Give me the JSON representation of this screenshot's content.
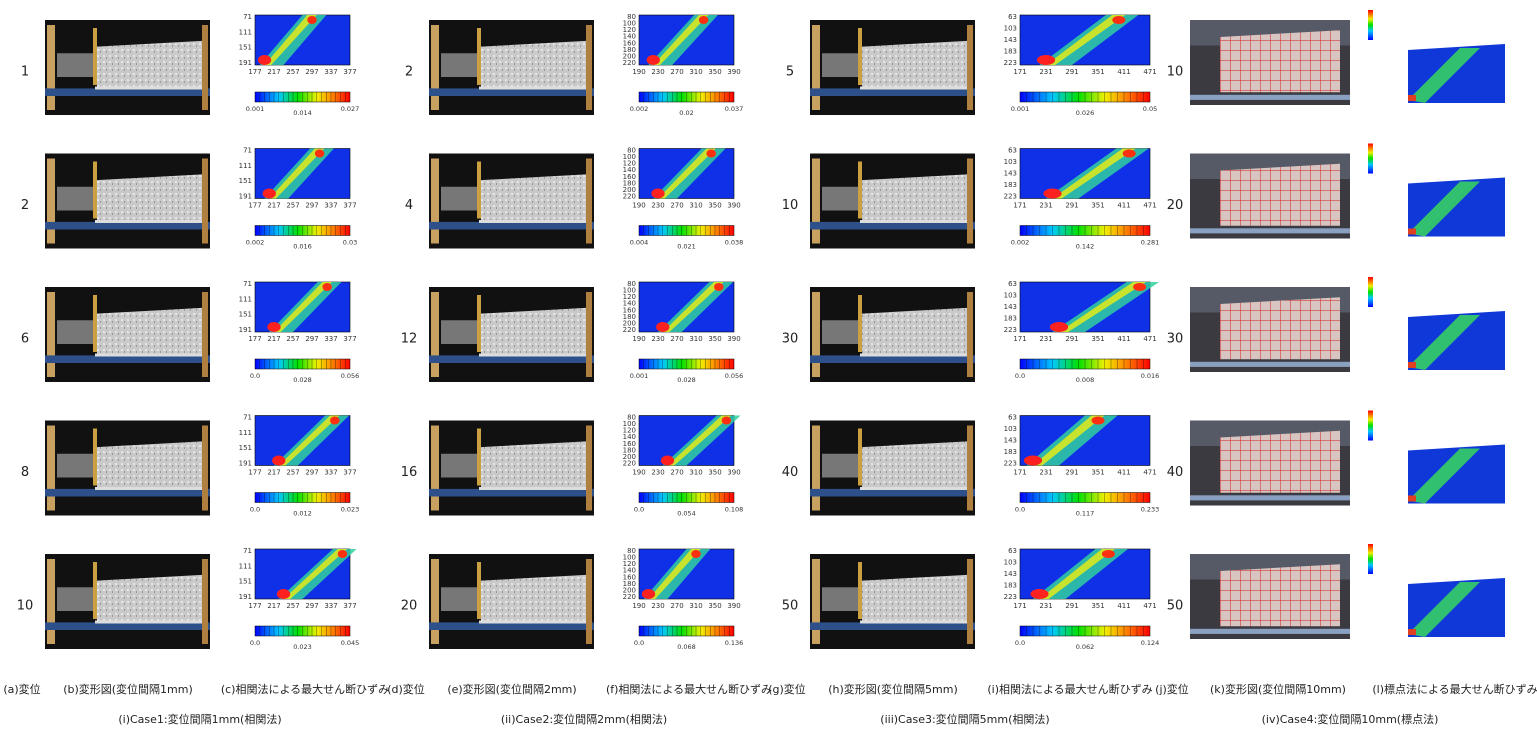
{
  "cases": [
    {
      "caption": "(i)Case1:変位間隔1mm(相関法)",
      "headers": [
        "(a)変位",
        "(b)変形図(変位間隔1mm)",
        "(c)相関法による最大せん断ひずみ"
      ],
      "xticks": [
        177,
        217,
        257,
        297,
        337,
        377
      ],
      "yticks": [
        71,
        111,
        151,
        191
      ],
      "rows": [
        {
          "displacement": 1,
          "colorbar": [
            "0.001",
            "0.014",
            "0.027"
          ]
        },
        {
          "displacement": 2,
          "colorbar": [
            "0.002",
            "0.016",
            "0.03"
          ]
        },
        {
          "displacement": 6,
          "colorbar": [
            "0.0",
            "0.028",
            "0.056"
          ]
        },
        {
          "displacement": 8,
          "colorbar": [
            "0.0",
            "0.012",
            "0.023"
          ]
        },
        {
          "displacement": 10,
          "colorbar": [
            "0.0",
            "0.023",
            "0.045"
          ]
        }
      ]
    },
    {
      "caption": "(ii)Case2:変位間隔2mm(相関法)",
      "headers": [
        "(d)変位",
        "(e)変形図(変位間隔2mm)",
        "(f)相関法による最大せん断ひずみ"
      ],
      "xticks": [
        190,
        230,
        270,
        310,
        350,
        390
      ],
      "yticks": [
        80,
        100,
        120,
        140,
        160,
        180,
        200,
        220
      ],
      "rows": [
        {
          "displacement": 2,
          "colorbar": [
            "0.002",
            "0.02",
            "0.037"
          ]
        },
        {
          "displacement": 4,
          "colorbar": [
            "0.004",
            "0.021",
            "0.038"
          ]
        },
        {
          "displacement": 12,
          "colorbar": [
            "0.001",
            "0.028",
            "0.056"
          ]
        },
        {
          "displacement": 16,
          "colorbar": [
            "0.0",
            "0.054",
            "0.108"
          ]
        },
        {
          "displacement": 20,
          "colorbar": [
            "0.0",
            "0.068",
            "0.136"
          ]
        }
      ]
    },
    {
      "caption": "(iii)Case3:変位間隔5mm(相関法)",
      "headers": [
        "(g)変位",
        "(h)変形図(変位間隔5mm)",
        "(i)相関法による最大せん断ひずみ"
      ],
      "xticks": [
        171,
        231,
        291,
        351,
        411,
        471
      ],
      "yticks": [
        63,
        103,
        143,
        183,
        223
      ],
      "rows": [
        {
          "displacement": 5,
          "colorbar": [
            "0.001",
            "0.026",
            "0.05"
          ]
        },
        {
          "displacement": 10,
          "colorbar": [
            "0.002",
            "0.142",
            "0.281"
          ]
        },
        {
          "displacement": 30,
          "colorbar": [
            "0.0",
            "0.008",
            "0.016"
          ]
        },
        {
          "displacement": 40,
          "colorbar": [
            "0.0",
            "0.117",
            "0.233"
          ]
        },
        {
          "displacement": 50,
          "colorbar": [
            "0.0",
            "0.062",
            "0.124"
          ]
        }
      ]
    },
    {
      "caption": "(iv)Case4:変位間隔10mm(標点法)",
      "headers": [
        "(j)変位",
        "(k)変形図(変位間隔10mm)",
        "(l)標点法による最大せん断ひずみ"
      ],
      "rows": [
        {
          "displacement": 10
        },
        {
          "displacement": 20
        },
        {
          "displacement": 30
        },
        {
          "displacement": 40
        },
        {
          "displacement": 50
        }
      ]
    }
  ]
}
